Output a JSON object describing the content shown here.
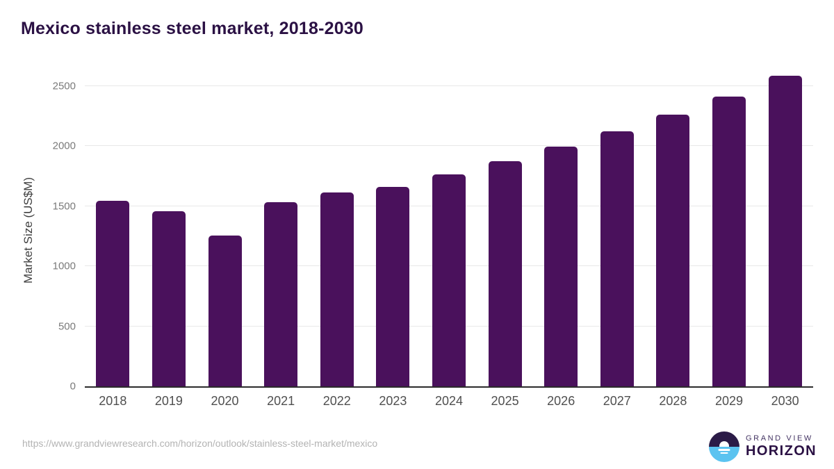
{
  "page": {
    "title": "Mexico stainless steel market, 2018-2030",
    "source_url": "https://www.grandviewresearch.com/horizon/outlook/stainless-steel-market/mexico"
  },
  "logo": {
    "top_text": "GRAND VIEW",
    "bottom_text": "HORIZON",
    "icon_name": "sunrise-horizon-icon",
    "icon_dark_color": "#2b1b47",
    "icon_blue_color": "#5bc3f0"
  },
  "chart_data": {
    "type": "bar",
    "title": "Mexico stainless steel market, 2018-2030",
    "categories": [
      "2018",
      "2019",
      "2020",
      "2021",
      "2022",
      "2023",
      "2024",
      "2025",
      "2026",
      "2027",
      "2028",
      "2029",
      "2030"
    ],
    "values": [
      1545,
      1460,
      1255,
      1535,
      1615,
      1660,
      1765,
      1875,
      1995,
      2125,
      2265,
      2415,
      2585
    ],
    "xlabel": "",
    "ylabel": "Market Size (US$M)",
    "ylim": [
      0,
      2621
    ],
    "yticks": [
      0,
      500,
      1000,
      1500,
      2000,
      2500
    ],
    "grid": "horizontal",
    "legend_position": "none",
    "bar_color": "#4a115c",
    "title_color": "#2b1144",
    "gridline_color": "#e8e8e8",
    "axis_line_color": "#2b2b2b",
    "ytick_color": "#7a7a7a",
    "xtick_color": "#4f4f4f"
  }
}
